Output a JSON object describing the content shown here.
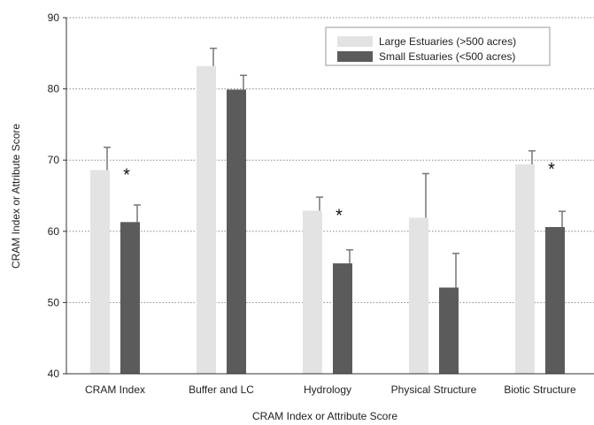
{
  "chart_data": {
    "type": "bar",
    "title": "",
    "xlabel": "CRAM Index or Attribute Score",
    "ylabel": "CRAM Index or Attribute Score",
    "ylim": [
      40,
      90
    ],
    "yticks": [
      "40",
      "50",
      "60",
      "70",
      "80",
      "90"
    ],
    "grid": "horizontal dotted",
    "legend_position": "top-right",
    "categories": [
      "CRAM Index",
      "Buffer and LC",
      "Hydrology",
      "Physical Structure",
      "Biotic Structure"
    ],
    "series": [
      {
        "name": "Large Estuaries (>500 acres)",
        "color": "#e3e3e3",
        "values": [
          68.6,
          83.2,
          62.9,
          61.9,
          69.4
        ],
        "errors": [
          3.2,
          2.5,
          1.9,
          6.2,
          1.9
        ]
      },
      {
        "name": "Small Estuaries (<500 acres)",
        "color": "#5b5b5b",
        "values": [
          61.3,
          79.9,
          55.5,
          52.1,
          60.6
        ],
        "errors": [
          2.4,
          2.0,
          1.9,
          4.8,
          2.2
        ]
      }
    ],
    "significance_marker": "*",
    "significant_categories": [
      0,
      2,
      4
    ]
  }
}
